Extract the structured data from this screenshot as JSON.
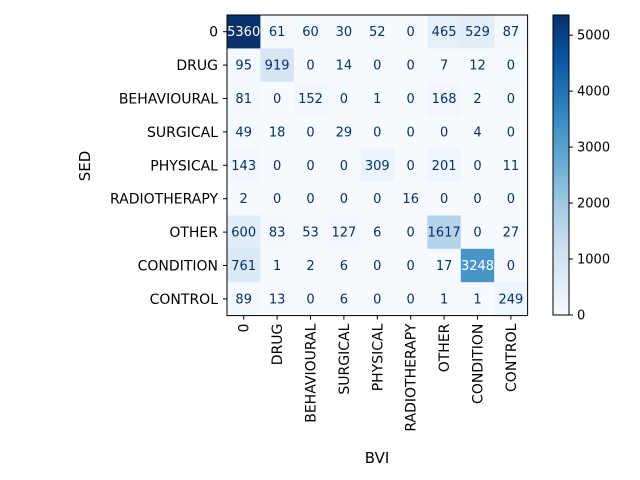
{
  "chart_data": {
    "type": "heatmap",
    "title": "",
    "xlabel": "BVI",
    "ylabel": "SED",
    "x_categories": [
      "0",
      "DRUG",
      "BEHAVIOURAL",
      "SURGICAL",
      "PHYSICAL",
      "RADIOTHERAPY",
      "OTHER",
      "CONDITION",
      "CONTROL"
    ],
    "y_categories": [
      "0",
      "DRUG",
      "BEHAVIOURAL",
      "SURGICAL",
      "PHYSICAL",
      "RADIOTHERAPY",
      "OTHER",
      "CONDITION",
      "CONTROL"
    ],
    "values": [
      [
        5360,
        61,
        60,
        30,
        52,
        0,
        465,
        529,
        87
      ],
      [
        95,
        919,
        0,
        14,
        0,
        0,
        7,
        12,
        0
      ],
      [
        81,
        0,
        152,
        0,
        1,
        0,
        168,
        2,
        0
      ],
      [
        49,
        18,
        0,
        29,
        0,
        0,
        0,
        4,
        0
      ],
      [
        143,
        0,
        0,
        0,
        309,
        0,
        201,
        0,
        11
      ],
      [
        2,
        0,
        0,
        0,
        0,
        16,
        0,
        0,
        0
      ],
      [
        600,
        83,
        53,
        127,
        6,
        0,
        1617,
        0,
        27
      ],
      [
        761,
        1,
        2,
        6,
        0,
        0,
        17,
        3248,
        0
      ],
      [
        89,
        13,
        0,
        6,
        0,
        0,
        1,
        1,
        249
      ]
    ],
    "colormap": "Blues",
    "vmin": 0,
    "vmax": 5360,
    "colorbar_ticks": [
      0,
      1000,
      2000,
      3000,
      4000,
      5000
    ],
    "grid": false
  }
}
